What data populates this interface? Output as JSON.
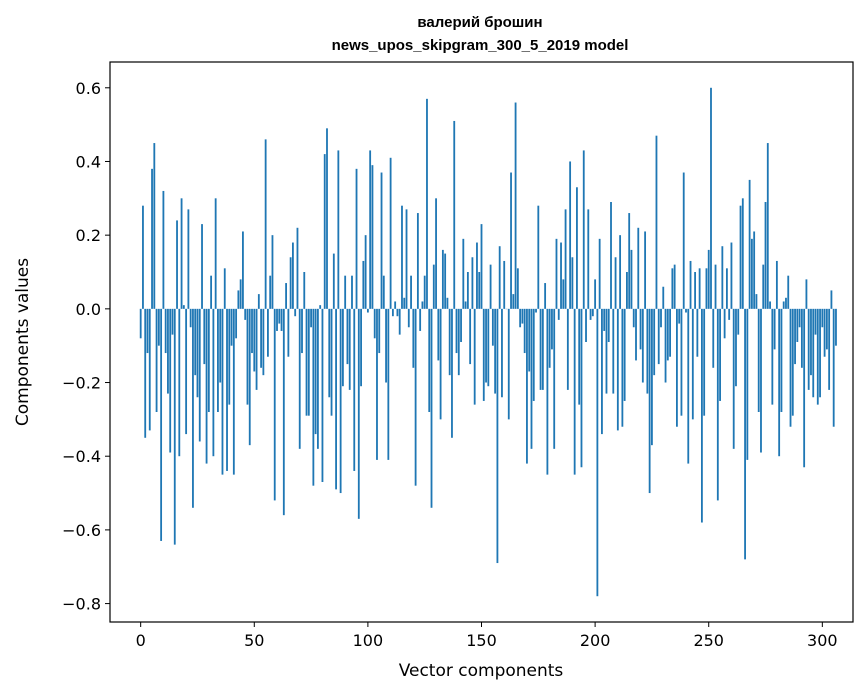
{
  "chart_data": {
    "type": "bar",
    "title_line1": "валерий брошин",
    "title_line2": "news_upos_skipgram_300_5_2019 model",
    "xlabel": "Vector components",
    "ylabel": "Components values",
    "xlim": [
      -13.5,
      313.5
    ],
    "ylim": [
      -0.85,
      0.67
    ],
    "x_ticks": [
      0,
      50,
      100,
      150,
      200,
      250,
      300
    ],
    "y_ticks": [
      0.6,
      0.4,
      0.2,
      0.0,
      -0.2,
      -0.4,
      -0.6,
      -0.8
    ],
    "y_tick_labels": [
      "0.6",
      "0.4",
      "0.2",
      "0.0",
      "−0.2",
      "−0.4",
      "−0.6",
      "−0.8"
    ],
    "grid": false,
    "bar_color": "#1f77b4",
    "values": [
      -0.08,
      0.28,
      -0.35,
      -0.12,
      -0.33,
      0.38,
      0.45,
      -0.28,
      -0.1,
      -0.63,
      0.32,
      -0.12,
      -0.23,
      -0.39,
      -0.07,
      -0.64,
      0.24,
      -0.4,
      0.3,
      0.01,
      -0.34,
      0.27,
      -0.05,
      -0.54,
      -0.18,
      -0.24,
      -0.36,
      0.23,
      -0.15,
      -0.42,
      -0.28,
      0.09,
      -0.4,
      0.3,
      -0.28,
      -0.2,
      -0.45,
      0.11,
      -0.44,
      -0.26,
      -0.1,
      -0.45,
      -0.08,
      0.05,
      0.08,
      0.21,
      -0.03,
      -0.26,
      -0.37,
      -0.12,
      -0.17,
      -0.22,
      0.04,
      -0.16,
      -0.18,
      0.46,
      -0.13,
      0.09,
      0.2,
      -0.52,
      -0.06,
      -0.04,
      -0.06,
      -0.56,
      0.07,
      -0.13,
      0.14,
      0.18,
      -0.02,
      0.22,
      -0.38,
      -0.12,
      0.1,
      -0.29,
      -0.29,
      -0.05,
      -0.48,
      -0.34,
      -0.38,
      0.01,
      -0.47,
      0.42,
      0.49,
      -0.24,
      -0.29,
      0.15,
      -0.49,
      0.43,
      -0.5,
      -0.21,
      0.09,
      -0.15,
      -0.22,
      0.09,
      -0.44,
      0.38,
      -0.57,
      -0.21,
      0.13,
      0.2,
      -0.01,
      0.43,
      0.39,
      -0.08,
      -0.41,
      -0.12,
      0.37,
      0.09,
      -0.2,
      -0.41,
      0.41,
      -0.02,
      0.02,
      -0.02,
      -0.07,
      0.28,
      0.03,
      0.27,
      -0.05,
      0.09,
      -0.16,
      -0.48,
      0.26,
      -0.06,
      0.02,
      0.09,
      0.57,
      -0.28,
      -0.54,
      0.12,
      0.3,
      -0.14,
      -0.3,
      0.16,
      0.15,
      0.03,
      -0.18,
      -0.35,
      0.51,
      -0.12,
      -0.18,
      -0.09,
      0.19,
      0.02,
      0.1,
      -0.15,
      0.14,
      -0.26,
      0.18,
      0.1,
      0.23,
      -0.25,
      -0.2,
      -0.21,
      0.12,
      -0.1,
      -0.23,
      -0.69,
      0.17,
      -0.24,
      0.13,
      0.0,
      -0.3,
      0.37,
      0.04,
      0.56,
      0.11,
      -0.05,
      -0.04,
      -0.12,
      -0.42,
      -0.17,
      -0.38,
      -0.25,
      -0.01,
      0.28,
      -0.22,
      -0.22,
      0.07,
      -0.45,
      -0.16,
      -0.11,
      -0.38,
      0.19,
      -0.03,
      0.18,
      0.08,
      0.27,
      -0.22,
      0.4,
      0.14,
      -0.45,
      0.33,
      -0.26,
      -0.43,
      0.43,
      -0.09,
      0.27,
      -0.03,
      -0.02,
      0.08,
      -0.78,
      0.19,
      -0.34,
      -0.06,
      -0.23,
      -0.09,
      0.29,
      -0.23,
      0.14,
      -0.33,
      0.2,
      -0.32,
      -0.25,
      0.1,
      0.26,
      0.16,
      -0.05,
      -0.14,
      0.22,
      -0.11,
      -0.2,
      0.21,
      -0.23,
      -0.5,
      -0.37,
      -0.18,
      0.47,
      -0.15,
      -0.05,
      0.06,
      -0.2,
      -0.14,
      -0.13,
      0.11,
      0.12,
      -0.32,
      -0.04,
      -0.29,
      0.37,
      -0.01,
      -0.42,
      0.13,
      -0.3,
      0.1,
      -0.13,
      0.11,
      -0.58,
      -0.29,
      0.11,
      0.16,
      0.6,
      -0.16,
      0.12,
      -0.52,
      -0.25,
      0.17,
      -0.08,
      0.11,
      -0.03,
      0.18,
      -0.38,
      -0.21,
      -0.07,
      0.28,
      0.3,
      -0.68,
      -0.41,
      0.35,
      0.19,
      0.21,
      0.04,
      -0.28,
      -0.39,
      0.12,
      0.29,
      0.45,
      0.02,
      -0.26,
      -0.11,
      0.13,
      -0.4,
      -0.28,
      0.02,
      0.03,
      0.09,
      -0.32,
      -0.29,
      -0.15,
      -0.09,
      -0.05,
      -0.16,
      -0.43,
      0.08,
      -0.22,
      -0.18,
      -0.24,
      -0.07,
      -0.26,
      -0.24,
      -0.05,
      -0.13,
      -0.11,
      -0.22,
      0.05,
      -0.32,
      -0.1
    ]
  }
}
